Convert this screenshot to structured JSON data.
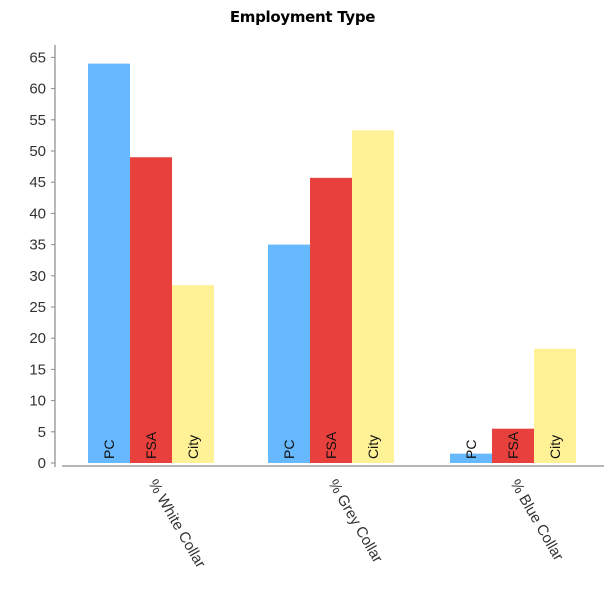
{
  "chart_data": {
    "type": "bar",
    "title": "Employment Type",
    "xlabel": "",
    "ylabel": "",
    "categories": [
      "% White Collar",
      "% Grey Collar",
      "% Blue Collar"
    ],
    "series": [
      {
        "name": "PC",
        "color": "#66b8ff",
        "values": [
          64,
          35,
          1.5
        ]
      },
      {
        "name": "FSA",
        "color": "#e8403c",
        "values": [
          49,
          45.7,
          5.5
        ]
      },
      {
        "name": "City",
        "color": "#fff195",
        "values": [
          28.5,
          53.3,
          18.3
        ]
      }
    ],
    "ylim": [
      0,
      67
    ],
    "yticks": [
      0,
      5,
      10,
      15,
      20,
      25,
      30,
      35,
      40,
      45,
      50,
      55,
      60,
      65
    ],
    "grid": false,
    "legend": "none"
  }
}
